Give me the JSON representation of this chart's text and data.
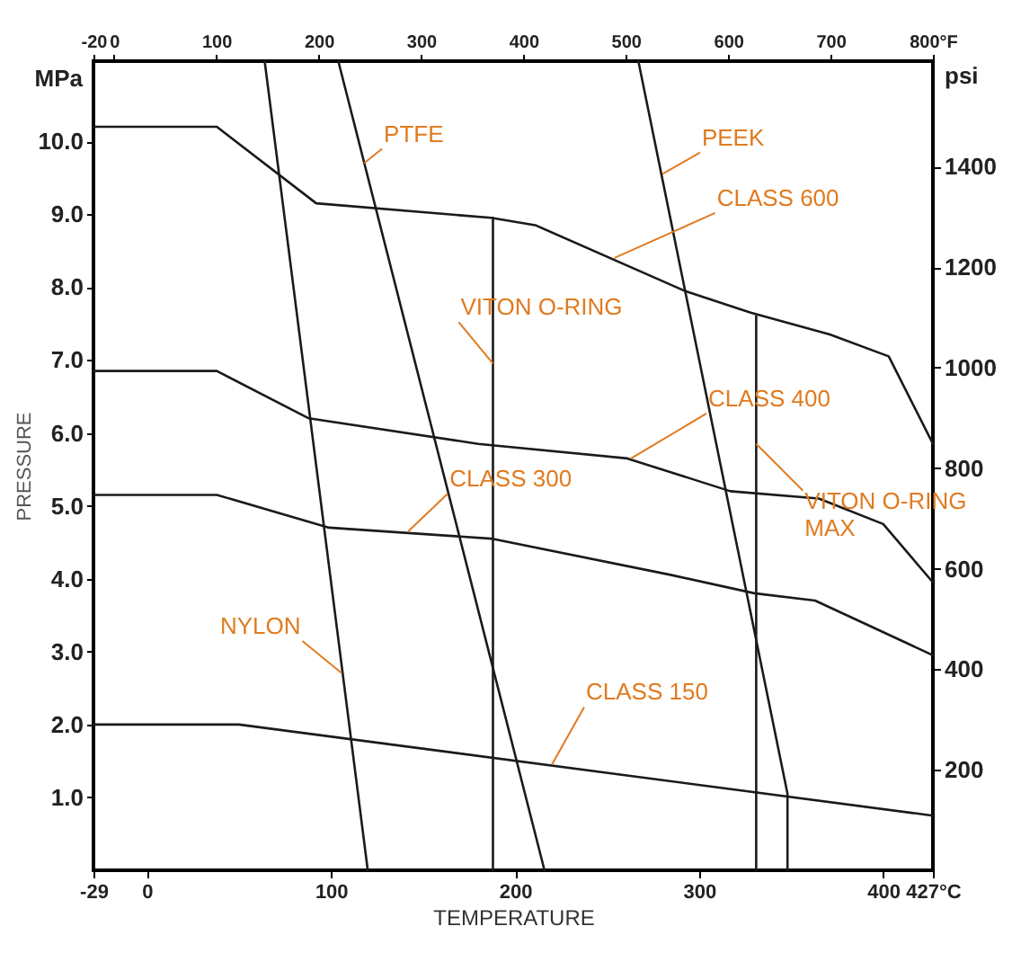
{
  "chart_data": {
    "type": "line",
    "xlabel": "TEMPERATURE",
    "ylabel": "PRESSURE",
    "y2label": "psi",
    "xlim": [
      -29,
      427
    ],
    "xticks": [
      -29,
      0,
      100,
      200,
      300,
      400,
      {
        "value": 427,
        "label": "427°C"
      }
    ],
    "ylim": [
      0,
      11.1
    ],
    "yticks": [
      {
        "value": 1,
        "label": "1.0"
      },
      {
        "value": 2,
        "label": "2.0"
      },
      {
        "value": 3,
        "label": "3.0"
      },
      {
        "value": 4,
        "label": "4.0"
      },
      {
        "value": 5,
        "label": "5.0"
      },
      {
        "value": 6,
        "label": "6.0"
      },
      {
        "value": 7,
        "label": "7.0"
      },
      {
        "value": 8,
        "label": "8.0"
      },
      {
        "value": 9,
        "label": "9.0"
      },
      {
        "value": 10,
        "label": "10.0"
      }
    ],
    "x2lim": [
      -20,
      800
    ],
    "x2ticks": [
      -20,
      0,
      100,
      200,
      300,
      400,
      500,
      600,
      700,
      {
        "value": 800,
        "label": "800°F"
      }
    ],
    "y2lim": [
      0,
      1610
    ],
    "y2ticks": [
      200,
      400,
      600,
      800,
      1000,
      1200,
      1400
    ],
    "series": [
      {
        "color": "#1a1a1a",
        "x": [
          -29,
          38,
          92,
          187,
          211,
          292,
          328,
          371,
          403,
          427
        ],
        "values": [
          10.2,
          10.2,
          9.15,
          8.95,
          8.85,
          7.95,
          7.65,
          7.35,
          7.05,
          5.85
        ]
      },
      {
        "color": "#1a1a1a",
        "x": [
          -29,
          38,
          88,
          180,
          261,
          317,
          365,
          400,
          427
        ],
        "values": [
          6.85,
          6.85,
          6.2,
          5.85,
          5.65,
          5.2,
          5.1,
          4.75,
          3.95
        ]
      },
      {
        "color": "#1a1a1a",
        "x": [
          -29,
          38,
          99,
          187,
          285,
          330,
          363,
          427
        ],
        "values": [
          5.15,
          5.15,
          4.7,
          4.55,
          4.05,
          3.8,
          3.7,
          2.95
        ]
      },
      {
        "color": "#1a1a1a",
        "x": [
          -29,
          50,
          427
        ],
        "values": [
          2.0,
          2.0,
          0.75
        ]
      },
      {
        "color": "#1a1a1a",
        "x": [
          64,
          120
        ],
        "values": [
          11.1,
          0
        ]
      },
      {
        "color": "#1a1a1a",
        "x": [
          104,
          216
        ],
        "values": [
          11.1,
          0
        ]
      },
      {
        "color": "#1a1a1a",
        "x": [
          188,
          188
        ],
        "values": [
          8.95,
          0
        ]
      },
      {
        "color": "#1a1a1a",
        "x": [
          267,
          348,
          348
        ],
        "values": [
          11.1,
          1.05,
          0
        ]
      },
      {
        "color": "#1a1a1a",
        "x": [
          331,
          331
        ],
        "values": [
          7.6,
          0
        ]
      }
    ],
    "annotations": [
      {
        "text": "PTFE",
        "x": 118,
        "y": 9.7
      },
      {
        "text": "PEEK",
        "x": 280,
        "y": 9.55
      },
      {
        "text": "CLASS 600",
        "x": 254,
        "y": 8.4
      },
      {
        "text": "VITON O-RING",
        "x": 188,
        "y": 6.95
      },
      {
        "text": "CLASS 400",
        "x": 263,
        "y": 5.65
      },
      {
        "text": "CLASS 300",
        "x": 142,
        "y": 4.65
      },
      {
        "text": "VITON O-RING\nMAX",
        "x": 331,
        "y": 5.85
      },
      {
        "text": "NYLON",
        "x": 106,
        "y": 2.7
      },
      {
        "text": "CLASS 150",
        "x": 220,
        "y": 1.45
      },
      "MPa"
    ]
  }
}
